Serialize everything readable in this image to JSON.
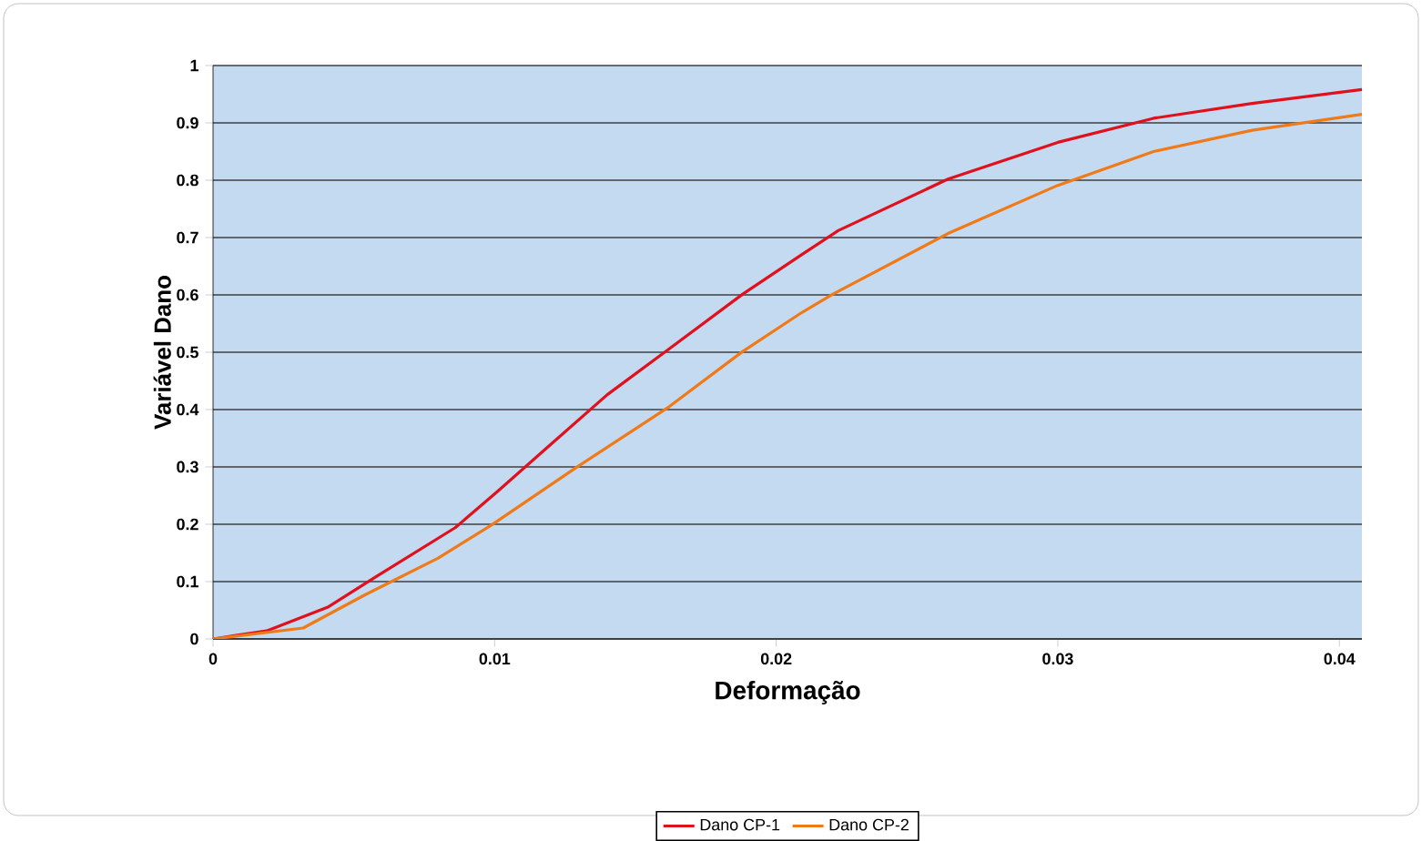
{
  "chart_data": {
    "type": "line",
    "xlabel": "Deformação",
    "ylabel": "Variável Dano",
    "xlim": [
      0,
      0.0408
    ],
    "ylim": [
      0,
      1
    ],
    "xticks": [
      0,
      0.01,
      0.02,
      0.03,
      0.04
    ],
    "yticks": [
      0,
      0.1,
      0.2,
      0.3,
      0.4,
      0.5,
      0.6,
      0.7,
      0.8,
      0.9,
      1
    ],
    "grid": "y",
    "legend": "bottom",
    "marker": "none",
    "line_style": "solid",
    "series": [
      {
        "name": "Dano CP-1",
        "color": "#e0101c",
        "x": [
          0,
          0.0019,
          0.0041,
          0.0058,
          0.0086,
          0.0101,
          0.0118,
          0.014,
          0.0162,
          0.0188,
          0.0209,
          0.0222,
          0.0261,
          0.03,
          0.0334,
          0.0369,
          0.0408
        ],
        "values": [
          0,
          0.014,
          0.056,
          0.109,
          0.194,
          0.257,
          0.331,
          0.426,
          0.506,
          0.601,
          0.67,
          0.712,
          0.802,
          0.866,
          0.908,
          0.934,
          0.958
        ]
      },
      {
        "name": "Dano CP-2",
        "color": "#f07a18",
        "x": [
          0,
          0.0032,
          0.0054,
          0.008,
          0.0099,
          0.0129,
          0.0162,
          0.0188,
          0.0209,
          0.022,
          0.0261,
          0.03,
          0.0334,
          0.0369,
          0.0408
        ],
        "values": [
          0,
          0.019,
          0.077,
          0.141,
          0.199,
          0.299,
          0.405,
          0.501,
          0.569,
          0.601,
          0.707,
          0.791,
          0.85,
          0.887,
          0.915
        ]
      }
    ]
  }
}
